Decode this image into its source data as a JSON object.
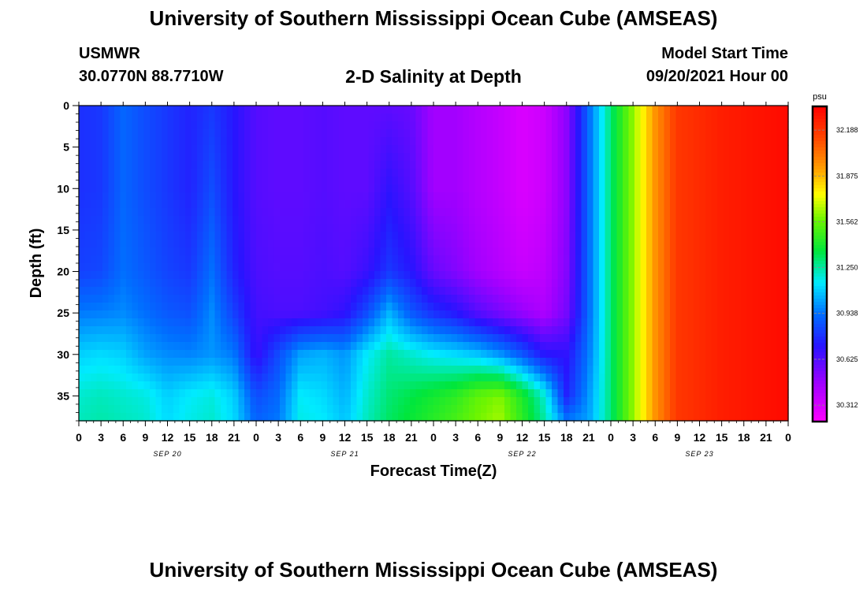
{
  "header": {
    "title": "University of Southern Mississippi Ocean Cube (AMSEAS)",
    "station": "USMWR",
    "coordinates": "30.0770N  88.7710W",
    "subtitle": "2-D Salinity at Depth",
    "model_start_label": "Model Start Time",
    "model_start_value": "09/20/2021 Hour 00"
  },
  "footer": {
    "title": "University of Southern Mississippi Ocean Cube (AMSEAS)"
  },
  "chart_data": {
    "type": "heatmap",
    "title": "2-D Salinity at Depth",
    "xlabel": "Forecast Time(Z)",
    "ylabel": "Depth (ft)",
    "x_unit": "hours since 09/20/2021 00Z",
    "xlim": [
      0,
      96
    ],
    "ylim": [
      0,
      38
    ],
    "x_tick_labels": [
      "0",
      "3",
      "6",
      "9",
      "12",
      "15",
      "18",
      "21",
      "0",
      "3",
      "6",
      "9",
      "12",
      "15",
      "18",
      "21",
      "0",
      "3",
      "6",
      "9",
      "12",
      "15",
      "18",
      "21",
      "0",
      "3",
      "6",
      "9",
      "12",
      "15",
      "18",
      "21",
      "0"
    ],
    "y_ticks": [
      0,
      5,
      10,
      15,
      20,
      25,
      30,
      35
    ],
    "day_labels": [
      {
        "label": "SEP 20",
        "hour": 12
      },
      {
        "label": "SEP 21",
        "hour": 36
      },
      {
        "label": "SEP 22",
        "hour": 60
      },
      {
        "label": "SEP 23",
        "hour": 84
      }
    ],
    "colorbar": {
      "unit": "psu",
      "min": 30.2,
      "max": 32.35,
      "ticks": [
        32.188,
        31.875,
        31.562,
        31.25,
        30.938,
        30.625,
        30.312
      ],
      "tick_labels": [
        "32.188",
        "31.875",
        "31.562",
        "31.250",
        "30.938",
        "30.625",
        "30.312"
      ]
    },
    "depths_ft": [
      0,
      10,
      20,
      25,
      30,
      35,
      38
    ],
    "hours": [
      0,
      3,
      6,
      9,
      12,
      15,
      18,
      21,
      24,
      27,
      30,
      33,
      36,
      39,
      42,
      45,
      48,
      51,
      54,
      57,
      60,
      63,
      66,
      69,
      72,
      75,
      78,
      81,
      84,
      87,
      90,
      93,
      96
    ],
    "salinity_psu": [
      [
        30.78,
        30.8,
        30.91,
        30.85,
        30.8,
        30.75,
        30.8,
        30.72,
        30.62,
        30.6,
        30.6,
        30.62,
        30.6,
        30.6,
        30.6,
        30.58,
        30.45,
        30.45,
        30.4,
        30.36,
        30.3,
        30.34,
        30.5,
        30.92,
        31.3,
        31.62,
        31.95,
        32.18,
        32.22,
        32.26,
        32.28,
        32.3,
        32.32
      ],
      [
        30.78,
        30.8,
        30.91,
        30.85,
        30.8,
        30.75,
        30.85,
        30.72,
        30.62,
        30.6,
        30.6,
        30.62,
        30.6,
        30.6,
        30.7,
        30.62,
        30.45,
        30.45,
        30.4,
        30.36,
        30.3,
        30.34,
        30.5,
        30.92,
        31.3,
        31.62,
        31.95,
        32.18,
        32.22,
        32.26,
        32.28,
        32.3,
        32.32
      ],
      [
        30.82,
        30.84,
        30.93,
        30.88,
        30.83,
        30.8,
        30.93,
        30.75,
        30.64,
        30.62,
        30.62,
        30.64,
        30.62,
        30.68,
        30.8,
        30.72,
        30.58,
        30.52,
        30.45,
        30.4,
        30.35,
        30.38,
        30.52,
        30.92,
        31.3,
        31.62,
        31.95,
        32.18,
        32.22,
        32.26,
        32.28,
        32.3,
        32.32
      ],
      [
        30.95,
        30.96,
        30.98,
        30.93,
        30.88,
        30.86,
        30.98,
        30.82,
        30.66,
        30.64,
        30.64,
        30.66,
        30.7,
        30.85,
        31.05,
        30.88,
        30.78,
        30.72,
        30.62,
        30.55,
        30.48,
        30.42,
        30.55,
        30.92,
        31.3,
        31.62,
        31.95,
        32.18,
        32.22,
        32.26,
        32.28,
        32.3,
        32.32
      ],
      [
        31.1,
        31.12,
        31.1,
        31.02,
        30.98,
        30.97,
        31.0,
        30.95,
        30.68,
        30.85,
        31.02,
        31.05,
        31.0,
        31.15,
        31.25,
        31.2,
        31.15,
        31.12,
        31.08,
        31.0,
        30.88,
        30.72,
        30.7,
        30.95,
        31.3,
        31.62,
        31.95,
        32.18,
        32.22,
        32.26,
        32.28,
        32.3,
        32.32
      ],
      [
        31.2,
        31.22,
        31.2,
        31.18,
        31.1,
        31.15,
        31.18,
        31.1,
        30.85,
        30.92,
        31.15,
        31.12,
        31.05,
        31.2,
        31.3,
        31.35,
        31.4,
        31.45,
        31.55,
        31.6,
        31.42,
        31.2,
        30.75,
        31.0,
        31.3,
        31.62,
        31.95,
        32.18,
        32.22,
        32.26,
        32.28,
        32.3,
        32.32
      ],
      [
        31.22,
        31.24,
        31.22,
        31.2,
        31.12,
        31.17,
        31.2,
        31.12,
        30.9,
        30.95,
        31.17,
        31.15,
        31.08,
        31.22,
        31.32,
        31.38,
        31.44,
        31.5,
        31.58,
        31.64,
        31.45,
        31.25,
        30.95,
        31.02,
        31.3,
        31.62,
        31.95,
        32.18,
        32.22,
        32.26,
        32.28,
        32.3,
        32.32
      ]
    ]
  }
}
